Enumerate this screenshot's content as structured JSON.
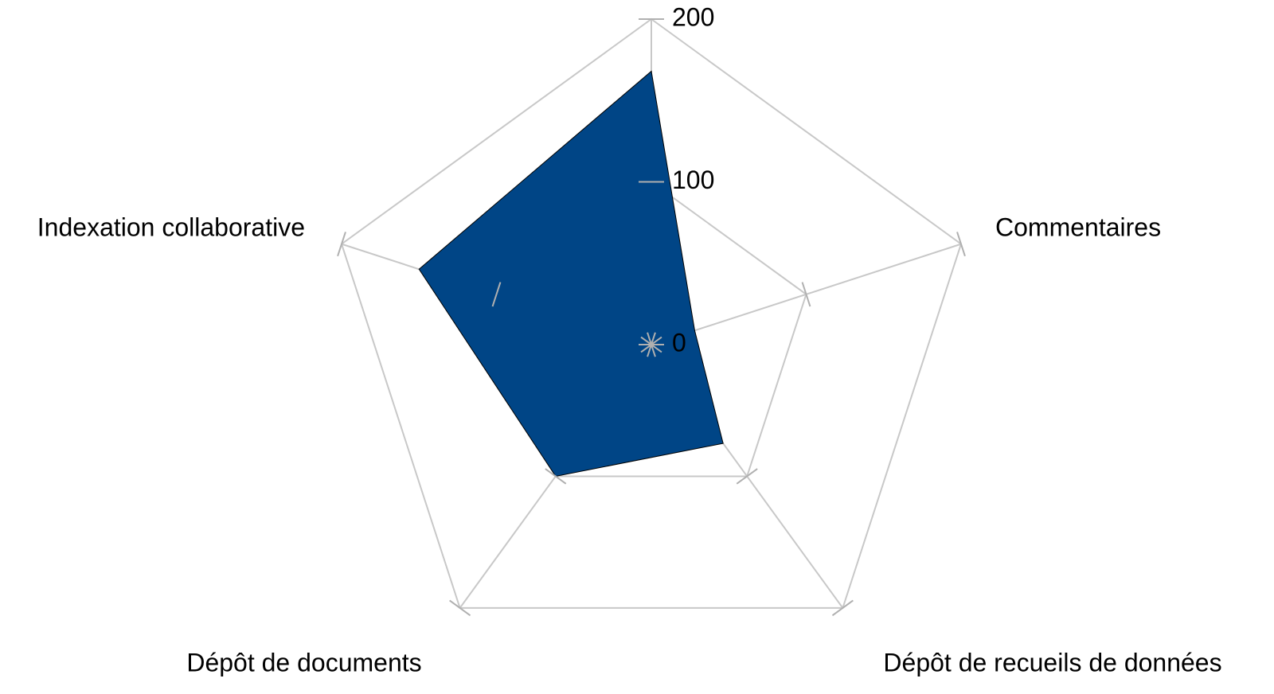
{
  "chart_data": {
    "type": "radar",
    "categories": [
      null,
      "Commentaires",
      "Dépôt de recueils de données",
      "Dépôt de documents",
      "Indexation collaborative"
    ],
    "series": [
      {
        "color": "#004586",
        "values": [
          168,
          28,
          75,
          100,
          150
        ]
      }
    ],
    "ylim": [
      0,
      200
    ],
    "yticks": [
      0,
      100,
      200
    ],
    "grid": true
  }
}
